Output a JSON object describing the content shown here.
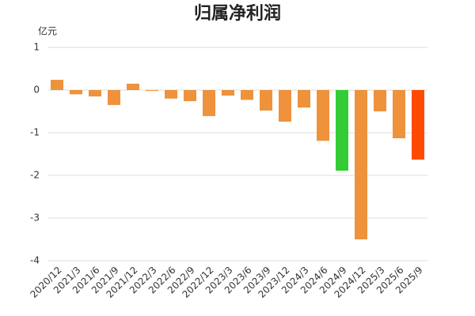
{
  "chart_data": {
    "type": "bar",
    "title": "归属净利润",
    "y_label": "亿元",
    "categories": [
      "2020/12",
      "2021/3",
      "2021/6",
      "2021/9",
      "2021/12",
      "2022/3",
      "2022/6",
      "2022/9",
      "2022/12",
      "2023/3",
      "2023/6",
      "2023/9",
      "2023/12",
      "2024/3",
      "2024/6",
      "2024/9",
      "2024/12",
      "2025/3",
      "2025/6",
      "2025/9"
    ],
    "values": [
      0.24,
      -0.1,
      -0.15,
      -0.35,
      0.15,
      -0.02,
      -0.2,
      -0.26,
      -0.61,
      -0.13,
      -0.23,
      -0.48,
      -0.74,
      -0.41,
      -1.19,
      -1.89,
      -3.5,
      -0.5,
      -1.13,
      -1.63
    ],
    "colors": [
      "#ee923c",
      "#ee923c",
      "#ee923c",
      "#ee923c",
      "#ee923c",
      "#ee923c",
      "#ee923c",
      "#ee923c",
      "#ee923c",
      "#ee923c",
      "#ee923c",
      "#ee923c",
      "#ee923c",
      "#ee923c",
      "#ee923c",
      "#33cc33",
      "#ee923c",
      "#ee923c",
      "#ee923c",
      "#ff4a00"
    ],
    "ylim": [
      -4,
      1
    ],
    "yticks": [
      -4,
      -3,
      -2,
      -1,
      0,
      1
    ],
    "grid": true
  }
}
